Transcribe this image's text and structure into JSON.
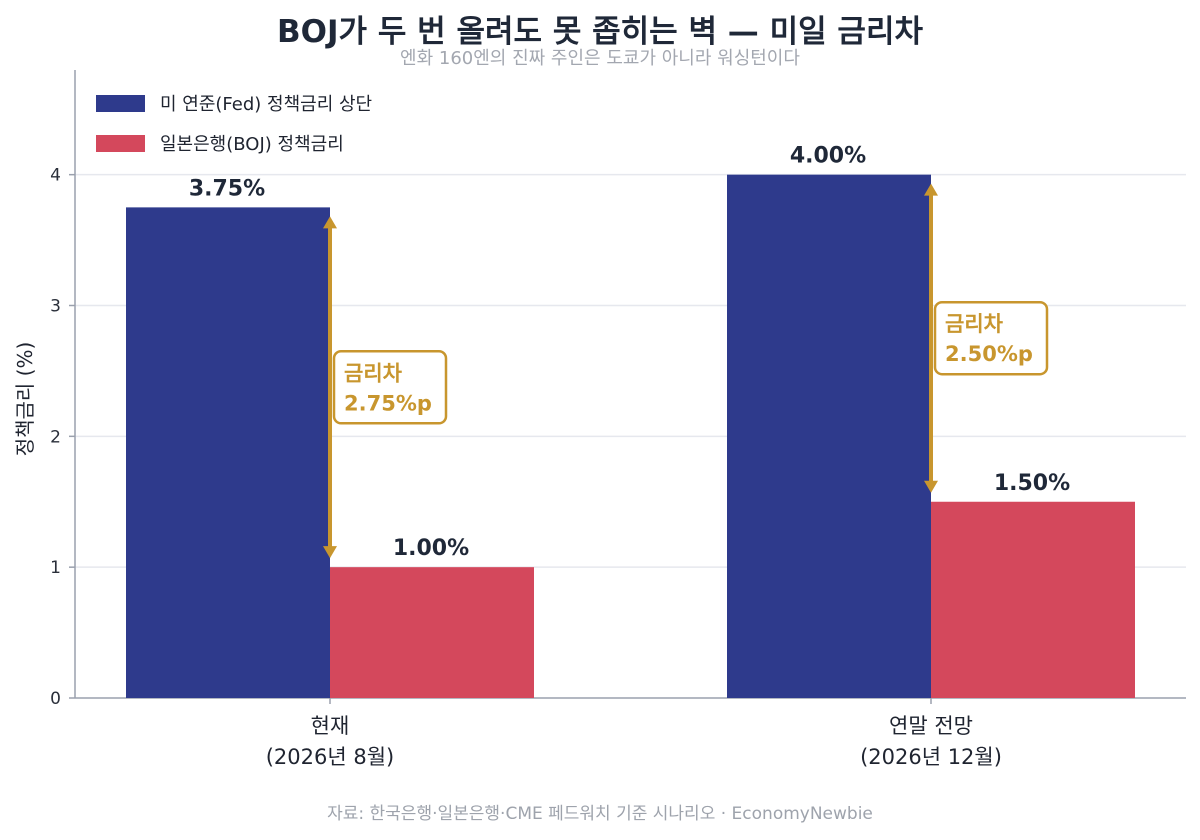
{
  "header": {
    "title": "BOJ가 두 번 올려도 못 좁히는 벽 — 미일 금리차",
    "subtitle": "엔화 160엔의 진짜 주인은 도쿄가 아니라 워싱턴이다"
  },
  "footer": {
    "source": "자료: 한국은행·일본은행·CME 페드워치 기준 시나리오 · EconomyNewbie"
  },
  "colors": {
    "fed": "#2e3a8c",
    "boj": "#d4485c",
    "gap": "#c8962e",
    "grid": "#e6e8ee",
    "axis": "#9aa0ad"
  },
  "chart_data": {
    "type": "bar",
    "title": "BOJ가 두 번 올려도 못 좁히는 벽 — 미일 금리차",
    "subtitle": "엔화 160엔의 진짜 주인은 도쿄가 아니라 워싱턴이다",
    "ylabel": "정책금리 (%)",
    "xlabel": "",
    "ylim": [
      0,
      4.8
    ],
    "yticks": [
      0,
      1,
      2,
      3,
      4
    ],
    "grid": true,
    "legend_position": "top-left",
    "categories": [
      [
        "현재",
        "(2026년 8월)"
      ],
      [
        "연말 전망",
        "(2026년 12월)"
      ]
    ],
    "series": [
      {
        "name": "미 연준(Fed) 정책금리 상단",
        "color": "#2e3a8c",
        "values": [
          3.75,
          4.0
        ],
        "labels": [
          "3.75%",
          "4.00%"
        ]
      },
      {
        "name": "일본은행(BOJ) 정책금리",
        "color": "#d4485c",
        "values": [
          1.0,
          1.5
        ],
        "labels": [
          "1.00%",
          "1.50%"
        ]
      }
    ],
    "annotations": [
      {
        "category": 0,
        "label": "금리차",
        "value": 2.75,
        "value_label": "2.75%p"
      },
      {
        "category": 1,
        "label": "금리차",
        "value": 2.5,
        "value_label": "2.50%p"
      }
    ]
  }
}
